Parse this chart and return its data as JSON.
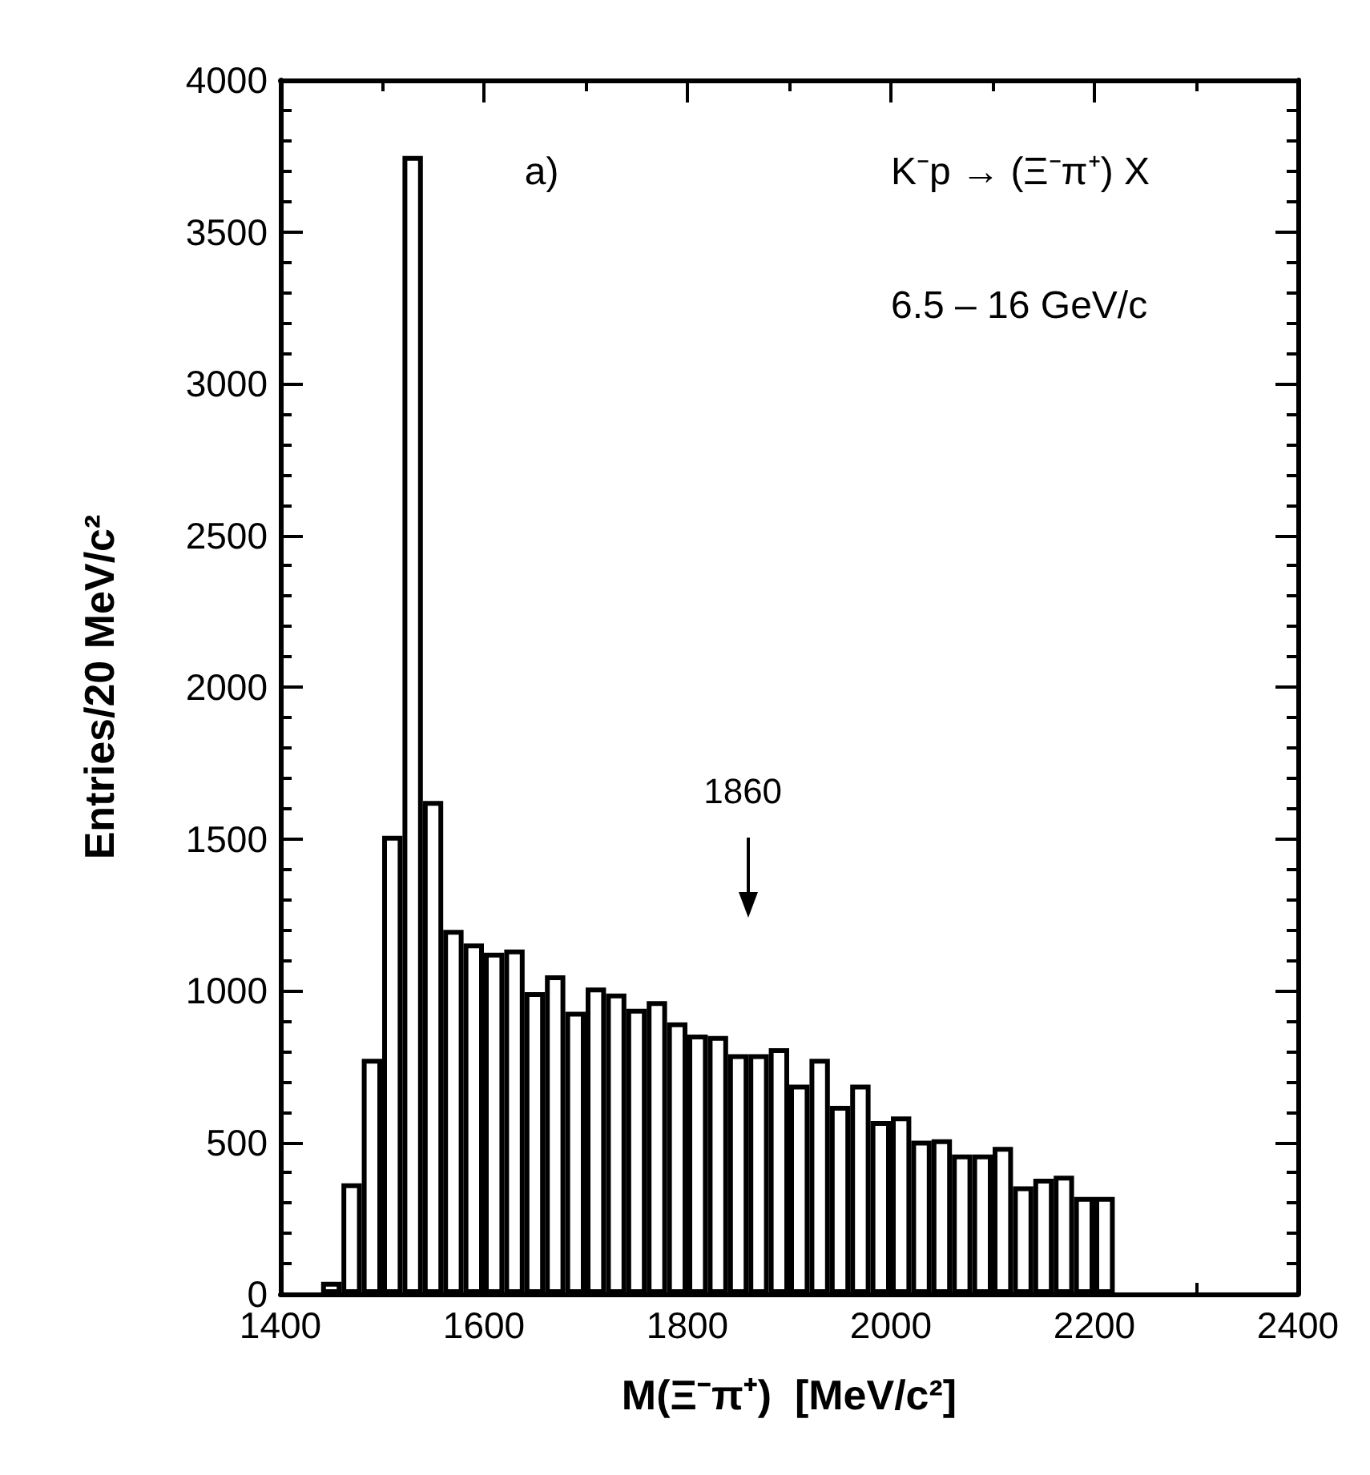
{
  "chart_data": {
    "type": "histogram",
    "xlabel": "M(Ξ⁻π⁺)  [MeV/c²]",
    "ylabel": "Entries/20 MeV/c²",
    "bins": [
      1440,
      1460,
      1480,
      1500,
      1520,
      1540,
      1560,
      1580,
      1600,
      1620,
      1640,
      1660,
      1680,
      1700,
      1720,
      1740,
      1760,
      1780,
      1800,
      1820,
      1840,
      1860,
      1880,
      1900,
      1920,
      1940,
      1960,
      1980,
      2000,
      2020,
      2040,
      2060,
      2080,
      2100,
      2120,
      2140,
      2160,
      2180,
      2200,
      2220
    ],
    "values": [
      40,
      365,
      775,
      1510,
      3750,
      1625,
      1200,
      1155,
      1125,
      1135,
      995,
      1050,
      930,
      1010,
      990,
      940,
      965,
      895,
      855,
      850,
      790,
      790,
      810,
      690,
      775,
      620,
      690,
      570,
      585,
      505,
      510,
      460,
      460,
      485,
      355,
      380,
      390,
      320,
      320
    ],
    "color": "#000000",
    "xlim": [
      1400,
      2400
    ],
    "xticks": [
      1400,
      1600,
      1800,
      2000,
      2200,
      2400
    ],
    "ylim": [
      0,
      4000
    ],
    "yticks": [
      0,
      500,
      1000,
      1500,
      2000,
      2500,
      3000,
      3500,
      4000
    ],
    "annotations": [
      "a)",
      "K⁻p → (Ξ⁻π⁺) X",
      "6.5 – 16 GeV/c",
      "1860"
    ]
  }
}
